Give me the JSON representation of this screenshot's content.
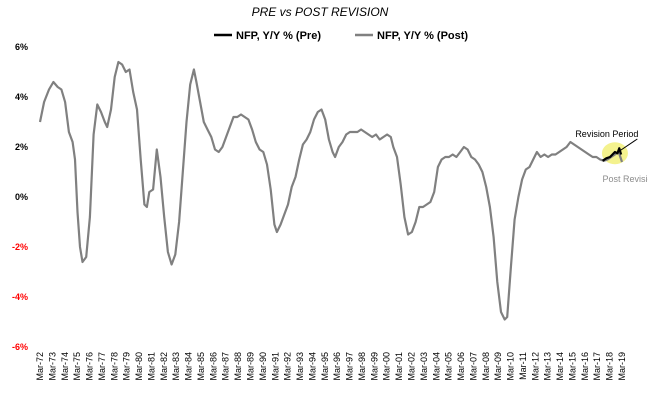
{
  "chart_data": {
    "type": "line",
    "title": "PRE vs POST REVISION",
    "legend_position": "top-center",
    "ylim": [
      -6,
      6
    ],
    "grid": false,
    "y_ticks": [
      {
        "label": "6%",
        "value": 6,
        "color": "#000000"
      },
      {
        "label": "4%",
        "value": 4,
        "color": "#000000"
      },
      {
        "label": "2%",
        "value": 2,
        "color": "#000000"
      },
      {
        "label": "0%",
        "value": 0,
        "color": "#000000"
      },
      {
        "label": "-2%",
        "value": -2,
        "color": "#ff0000"
      },
      {
        "label": "-4%",
        "value": -4,
        "color": "#ff0000"
      },
      {
        "label": "-6%",
        "value": -6,
        "color": "#ff0000"
      }
    ],
    "x_range": [
      1972.17,
      2019.17
    ],
    "x_tick_labels": [
      "Mar-72",
      "Mar-73",
      "Mar-74",
      "Mar-75",
      "Mar-76",
      "Mar-77",
      "Mar-78",
      "Mar-79",
      "Mar-80",
      "Mar-81",
      "Mar-82",
      "Mar-83",
      "Mar-84",
      "Mar-85",
      "Mar-86",
      "Mar-87",
      "Mar-88",
      "Mar-89",
      "Mar-90",
      "Mar-91",
      "Mar-92",
      "Mar-93",
      "Mar-94",
      "Mar-95",
      "Mar-96",
      "Mar-97",
      "Mar-98",
      "Mar-99",
      "Mar-00",
      "Mar-01",
      "Mar-02",
      "Mar-03",
      "Mar-04",
      "Mar-05",
      "Mar-06",
      "Mar-07",
      "Mar-08",
      "Mar-09",
      "Mar-10",
      "Mar-11",
      "Mar-12",
      "Mar-13",
      "Mar-14",
      "Mar-15",
      "Mar-16",
      "Mar-17",
      "Mar-18",
      "Mar-19"
    ],
    "series": [
      {
        "name": "NFP, Y/Y % (Pre)",
        "color": "#000000",
        "points": [
          [
            2017.6,
            1.45
          ],
          [
            2017.9,
            1.55
          ],
          [
            2018.2,
            1.6
          ],
          [
            2018.4,
            1.7
          ],
          [
            2018.6,
            1.8
          ],
          [
            2018.8,
            1.75
          ],
          [
            2018.95,
            1.95
          ],
          [
            2019.1,
            1.7
          ]
        ]
      },
      {
        "name": "NFP, Y/Y % (Post)",
        "color": "#808080",
        "points": [
          [
            1972.17,
            3.0
          ],
          [
            1972.5,
            3.8
          ],
          [
            1972.9,
            4.3
          ],
          [
            1973.25,
            4.6
          ],
          [
            1973.6,
            4.4
          ],
          [
            1973.9,
            4.3
          ],
          [
            1974.2,
            3.8
          ],
          [
            1974.5,
            2.6
          ],
          [
            1974.8,
            2.2
          ],
          [
            1975.0,
            1.5
          ],
          [
            1975.2,
            -0.6
          ],
          [
            1975.4,
            -2.0
          ],
          [
            1975.6,
            -2.6
          ],
          [
            1975.9,
            -2.4
          ],
          [
            1976.2,
            -0.8
          ],
          [
            1976.5,
            2.5
          ],
          [
            1976.8,
            3.7
          ],
          [
            1977.1,
            3.4
          ],
          [
            1977.4,
            3.0
          ],
          [
            1977.6,
            2.8
          ],
          [
            1977.9,
            3.5
          ],
          [
            1978.2,
            4.8
          ],
          [
            1978.5,
            5.4
          ],
          [
            1978.8,
            5.3
          ],
          [
            1979.1,
            5.0
          ],
          [
            1979.4,
            5.1
          ],
          [
            1979.7,
            4.2
          ],
          [
            1980.0,
            3.5
          ],
          [
            1980.3,
            1.5
          ],
          [
            1980.6,
            -0.3
          ],
          [
            1980.8,
            -0.4
          ],
          [
            1981.0,
            0.2
          ],
          [
            1981.3,
            0.3
          ],
          [
            1981.6,
            1.9
          ],
          [
            1981.9,
            0.8
          ],
          [
            1982.2,
            -0.8
          ],
          [
            1982.5,
            -2.2
          ],
          [
            1982.8,
            -2.7
          ],
          [
            1983.1,
            -2.3
          ],
          [
            1983.4,
            -1.0
          ],
          [
            1983.7,
            1.0
          ],
          [
            1984.0,
            3.0
          ],
          [
            1984.3,
            4.5
          ],
          [
            1984.6,
            5.1
          ],
          [
            1984.8,
            4.6
          ],
          [
            1985.1,
            3.8
          ],
          [
            1985.4,
            3.0
          ],
          [
            1985.7,
            2.7
          ],
          [
            1986.0,
            2.4
          ],
          [
            1986.3,
            1.9
          ],
          [
            1986.6,
            1.8
          ],
          [
            1986.9,
            2.0
          ],
          [
            1987.2,
            2.4
          ],
          [
            1987.5,
            2.8
          ],
          [
            1987.8,
            3.2
          ],
          [
            1988.1,
            3.2
          ],
          [
            1988.4,
            3.3
          ],
          [
            1988.7,
            3.2
          ],
          [
            1989.0,
            3.1
          ],
          [
            1989.3,
            2.7
          ],
          [
            1989.6,
            2.2
          ],
          [
            1989.9,
            1.9
          ],
          [
            1990.2,
            1.8
          ],
          [
            1990.5,
            1.3
          ],
          [
            1990.8,
            0.3
          ],
          [
            1991.1,
            -1.1
          ],
          [
            1991.3,
            -1.4
          ],
          [
            1991.6,
            -1.1
          ],
          [
            1991.9,
            -0.7
          ],
          [
            1992.2,
            -0.3
          ],
          [
            1992.5,
            0.4
          ],
          [
            1992.8,
            0.8
          ],
          [
            1993.1,
            1.5
          ],
          [
            1993.4,
            2.1
          ],
          [
            1993.7,
            2.3
          ],
          [
            1994.0,
            2.6
          ],
          [
            1994.3,
            3.1
          ],
          [
            1994.6,
            3.4
          ],
          [
            1994.9,
            3.5
          ],
          [
            1995.2,
            3.1
          ],
          [
            1995.5,
            2.3
          ],
          [
            1995.8,
            1.8
          ],
          [
            1996.0,
            1.6
          ],
          [
            1996.3,
            2.0
          ],
          [
            1996.6,
            2.2
          ],
          [
            1996.9,
            2.5
          ],
          [
            1997.2,
            2.6
          ],
          [
            1997.5,
            2.6
          ],
          [
            1997.8,
            2.6
          ],
          [
            1998.1,
            2.7
          ],
          [
            1998.4,
            2.6
          ],
          [
            1998.7,
            2.5
          ],
          [
            1999.0,
            2.4
          ],
          [
            1999.3,
            2.5
          ],
          [
            1999.6,
            2.3
          ],
          [
            1999.9,
            2.4
          ],
          [
            2000.2,
            2.5
          ],
          [
            2000.5,
            2.4
          ],
          [
            2000.7,
            2.0
          ],
          [
            2001.0,
            1.6
          ],
          [
            2001.3,
            0.5
          ],
          [
            2001.6,
            -0.8
          ],
          [
            2001.9,
            -1.5
          ],
          [
            2002.2,
            -1.4
          ],
          [
            2002.5,
            -1.0
          ],
          [
            2002.8,
            -0.4
          ],
          [
            2003.1,
            -0.4
          ],
          [
            2003.4,
            -0.3
          ],
          [
            2003.7,
            -0.2
          ],
          [
            2004.0,
            0.2
          ],
          [
            2004.3,
            1.2
          ],
          [
            2004.6,
            1.5
          ],
          [
            2004.9,
            1.6
          ],
          [
            2005.2,
            1.6
          ],
          [
            2005.5,
            1.7
          ],
          [
            2005.8,
            1.6
          ],
          [
            2006.1,
            1.8
          ],
          [
            2006.4,
            2.0
          ],
          [
            2006.7,
            1.9
          ],
          [
            2007.0,
            1.6
          ],
          [
            2007.3,
            1.5
          ],
          [
            2007.6,
            1.3
          ],
          [
            2007.9,
            1.0
          ],
          [
            2008.2,
            0.4
          ],
          [
            2008.5,
            -0.4
          ],
          [
            2008.8,
            -1.6
          ],
          [
            2009.1,
            -3.4
          ],
          [
            2009.4,
            -4.6
          ],
          [
            2009.7,
            -4.9
          ],
          [
            2009.9,
            -4.8
          ],
          [
            2010.2,
            -2.8
          ],
          [
            2010.5,
            -0.9
          ],
          [
            2010.8,
            0.0
          ],
          [
            2011.1,
            0.7
          ],
          [
            2011.4,
            1.1
          ],
          [
            2011.7,
            1.2
          ],
          [
            2012.0,
            1.5
          ],
          [
            2012.3,
            1.8
          ],
          [
            2012.6,
            1.6
          ],
          [
            2012.9,
            1.7
          ],
          [
            2013.2,
            1.6
          ],
          [
            2013.5,
            1.7
          ],
          [
            2013.8,
            1.7
          ],
          [
            2014.1,
            1.8
          ],
          [
            2014.4,
            1.9
          ],
          [
            2014.7,
            2.0
          ],
          [
            2015.0,
            2.2
          ],
          [
            2015.3,
            2.1
          ],
          [
            2015.6,
            2.0
          ],
          [
            2015.9,
            1.9
          ],
          [
            2016.2,
            1.8
          ],
          [
            2016.5,
            1.7
          ],
          [
            2016.8,
            1.6
          ],
          [
            2017.1,
            1.6
          ],
          [
            2017.4,
            1.5
          ],
          [
            2017.7,
            1.45
          ],
          [
            2018.0,
            1.5
          ],
          [
            2018.3,
            1.6
          ],
          [
            2018.6,
            1.7
          ],
          [
            2018.9,
            1.8
          ],
          [
            2019.17,
            1.4
          ]
        ]
      }
    ],
    "annotations": [
      {
        "label": "Revision Period",
        "x": 2015.4,
        "y": 2.4,
        "arrow_to": [
          2018.7,
          1.75
        ]
      },
      {
        "label": "Post Revision",
        "x": 2017.6,
        "y": 0.6,
        "color": "#8c8c8c"
      }
    ],
    "highlight": {
      "x": 2018.6,
      "y": 1.75,
      "color": "#f2f07a"
    }
  }
}
